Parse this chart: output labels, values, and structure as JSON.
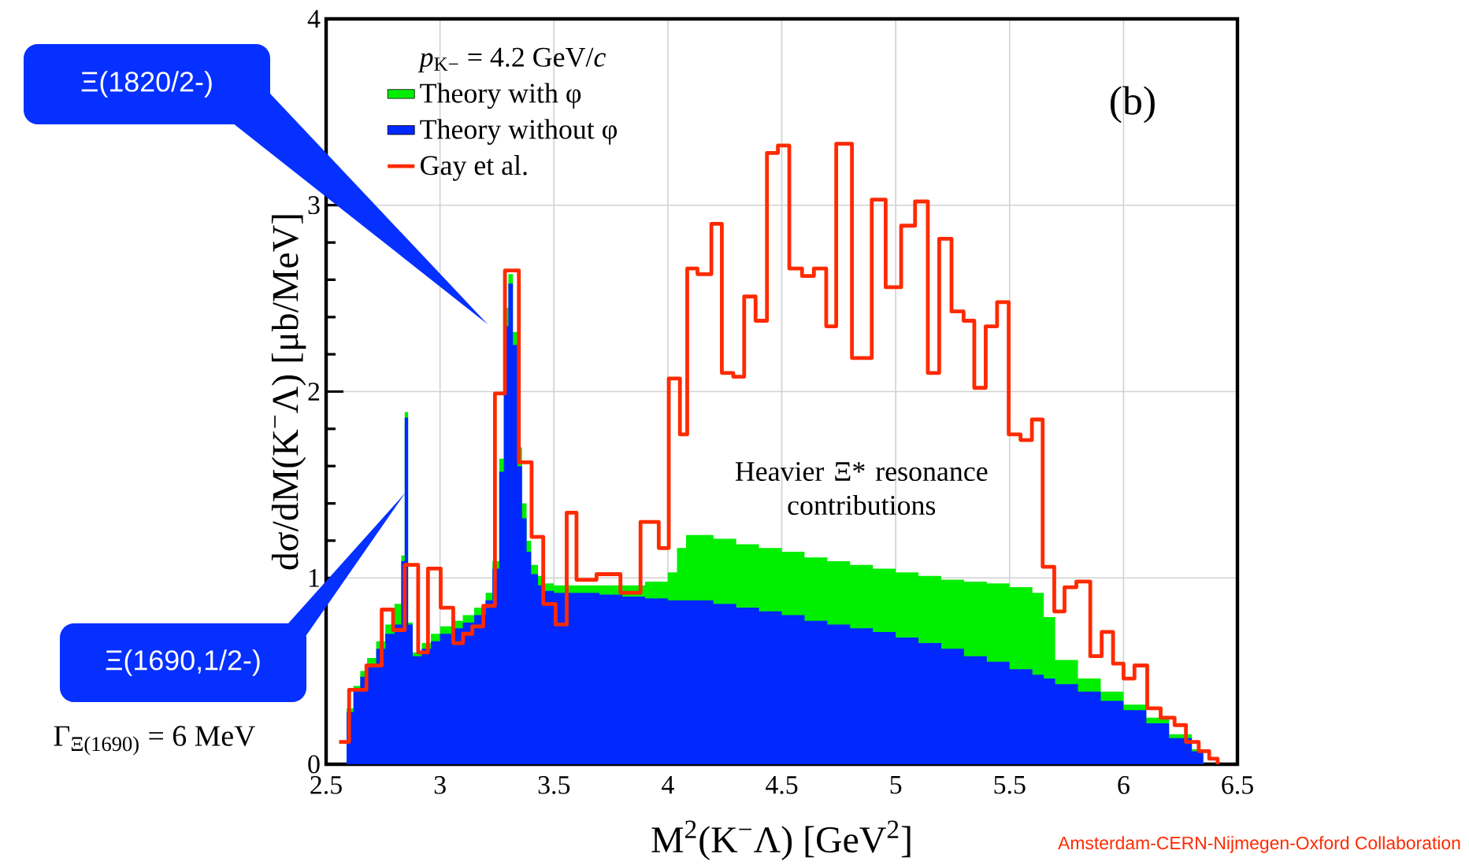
{
  "chart_data": {
    "type": "histogram",
    "xlabel": "M$^{2}$(K$^{−}$Λ) [GeV$^{2}$]",
    "ylabel": "dσ/dM(K$^{−}$Λ) [μb/MeV]",
    "legend_title": "*p*$_{K−}$ = 4.2 GeV/*c*",
    "legend": "top left",
    "grid": true,
    "xlim": [
      2.5,
      6.5
    ],
    "ylim": [
      0,
      4
    ],
    "xticks": [
      2.5,
      3,
      3.5,
      4,
      4.5,
      5,
      5.5,
      6,
      6.5
    ],
    "yticks": [
      0,
      1,
      2,
      3,
      4
    ],
    "bins": [
      2.59,
      2.62,
      2.65,
      2.68,
      2.72,
      2.76,
      2.8,
      2.83,
      2.845,
      2.86,
      2.88,
      2.92,
      2.96,
      3.0,
      3.05,
      3.1,
      3.15,
      3.2,
      3.23,
      3.26,
      3.28,
      3.3,
      3.32,
      3.34,
      3.36,
      3.38,
      3.4,
      3.43,
      3.46,
      3.5,
      3.6,
      3.7,
      3.8,
      3.9,
      4.0,
      4.04,
      4.08,
      4.2,
      4.3,
      4.4,
      4.5,
      4.6,
      4.7,
      4.8,
      4.9,
      5.0,
      5.1,
      5.2,
      5.3,
      5.4,
      5.5,
      5.6,
      5.65,
      5.7,
      5.8,
      5.9,
      6.0,
      6.1,
      6.2,
      6.3,
      6.35
    ],
    "series": [
      {
        "name": "Theory with φ",
        "color": "#00ee00",
        "values": [
          0.3,
          0.42,
          0.5,
          0.57,
          0.66,
          0.75,
          0.86,
          1.12,
          1.89,
          0.76,
          0.6,
          0.65,
          0.7,
          0.74,
          0.77,
          0.8,
          0.84,
          0.92,
          1.09,
          1.64,
          2.45,
          2.63,
          2.32,
          1.7,
          1.4,
          1.2,
          1.07,
          1.01,
          0.97,
          0.96,
          0.96,
          0.96,
          0.96,
          0.98,
          1.03,
          1.16,
          1.23,
          1.21,
          1.18,
          1.16,
          1.14,
          1.11,
          1.09,
          1.07,
          1.05,
          1.03,
          1.01,
          0.99,
          0.98,
          0.97,
          0.95,
          0.92,
          0.79,
          0.56,
          0.46,
          0.39,
          0.32,
          0.25,
          0.16,
          0.08
        ]
      },
      {
        "name": "Theory without φ",
        "color": "#0028ff",
        "values": [
          0.28,
          0.4,
          0.47,
          0.54,
          0.62,
          0.7,
          0.75,
          1.09,
          1.86,
          0.75,
          0.58,
          0.62,
          0.66,
          0.7,
          0.73,
          0.76,
          0.8,
          0.88,
          1.05,
          1.57,
          2.35,
          2.58,
          2.25,
          1.6,
          1.32,
          1.14,
          1.02,
          0.96,
          0.93,
          0.92,
          0.92,
          0.91,
          0.9,
          0.89,
          0.88,
          0.88,
          0.88,
          0.86,
          0.84,
          0.82,
          0.8,
          0.77,
          0.75,
          0.73,
          0.71,
          0.68,
          0.65,
          0.62,
          0.58,
          0.55,
          0.51,
          0.48,
          0.46,
          0.43,
          0.39,
          0.34,
          0.29,
          0.22,
          0.14,
          0.07
        ]
      },
      {
        "name": "Gay et al.",
        "color": "#ff2a00",
        "type": "step",
        "x": [
          2.557,
          2.601,
          2.677,
          2.744,
          2.794,
          2.845,
          2.904,
          2.947,
          3.003,
          3.058,
          3.101,
          3.142,
          3.19,
          3.241,
          3.285,
          3.346,
          3.402,
          3.453,
          3.507,
          3.556,
          3.599,
          3.687,
          3.792,
          3.88,
          3.96,
          4.004,
          4.053,
          4.085,
          4.13,
          4.191,
          4.237,
          4.287,
          4.335,
          4.385,
          4.435,
          4.483,
          4.533,
          4.589,
          4.641,
          4.695,
          4.739,
          4.808,
          4.895,
          4.956,
          5.024,
          5.085,
          5.141,
          5.191,
          5.245,
          5.298,
          5.345,
          5.395,
          5.445,
          5.496,
          5.548,
          5.598,
          5.645,
          5.696,
          5.741,
          5.793,
          5.854,
          5.904,
          5.954,
          6.0,
          6.048,
          6.104,
          6.163,
          6.224,
          6.274,
          6.33,
          6.376,
          6.413
        ],
        "values": [
          0.12,
          0.4,
          0.53,
          0.83,
          0.72,
          1.07,
          0.6,
          1.05,
          0.84,
          0.65,
          0.7,
          0.74,
          0.85,
          1.99,
          2.65,
          1.62,
          1.22,
          0.86,
          0.75,
          1.35,
          0.99,
          1.02,
          0.92,
          1.3,
          1.16,
          2.07,
          1.77,
          2.66,
          2.63,
          2.9,
          2.1,
          2.08,
          2.51,
          2.38,
          3.28,
          3.32,
          2.66,
          2.62,
          2.66,
          2.35,
          3.33,
          2.18,
          3.03,
          2.56,
          2.89,
          3.02,
          2.1,
          2.82,
          2.43,
          2.38,
          2.02,
          2.35,
          2.48,
          1.77,
          1.74,
          1.85,
          1.06,
          0.82,
          0.95,
          0.98,
          0.58,
          0.71,
          0.54,
          0.46,
          0.53,
          0.3,
          0.25,
          0.21,
          0.12,
          0.07,
          0.03,
          0
        ]
      }
    ],
    "annotations": [
      "Ξ(1820/2-)",
      "Ξ(1690,1/2-)",
      "Heavier Ξ* resonance contributions",
      "(b)",
      "Γ$_{Ξ(1690)}$   =   6  MeV",
      "Amsterdam-CERN-Nijmegen-Oxford Collaboration"
    ]
  }
}
